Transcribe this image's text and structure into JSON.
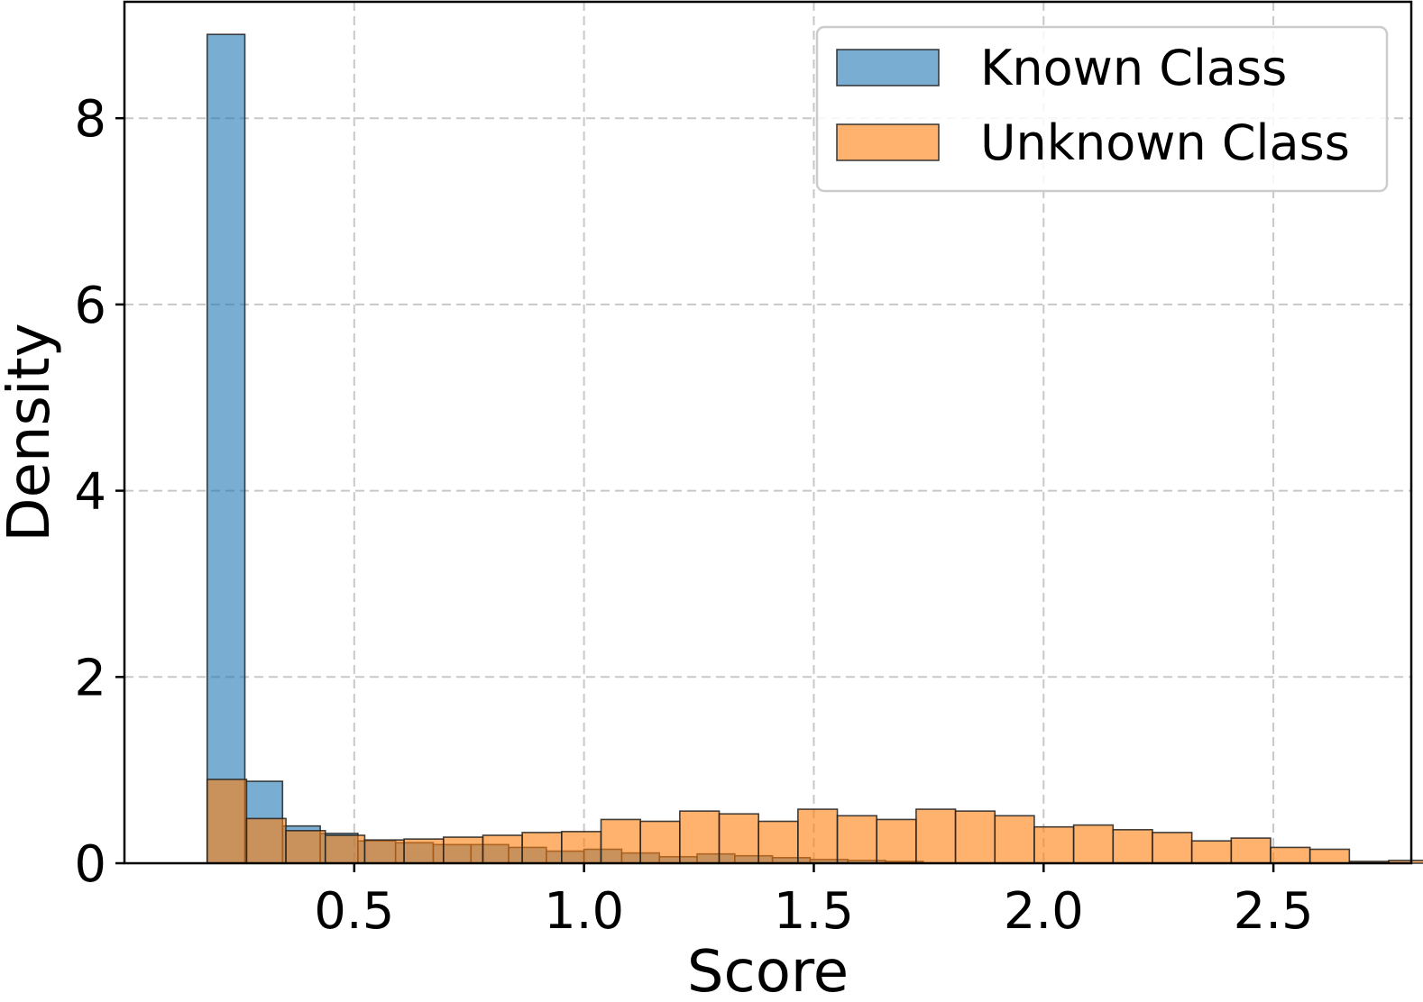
{
  "chart_data": {
    "type": "histogram",
    "xlabel": "Score",
    "ylabel": "Density",
    "xlim": [
      0.0,
      2.8
    ],
    "ylim": [
      0,
      9.25
    ],
    "xticks": [
      "0.5",
      "1.0",
      "1.5",
      "2.0",
      "2.5"
    ],
    "xtick_values": [
      0.5,
      1.0,
      1.5,
      2.0,
      2.5
    ],
    "yticks": [
      "0",
      "2",
      "4",
      "6",
      "8"
    ],
    "ytick_values": [
      0,
      2,
      4,
      6,
      8
    ],
    "grid": true,
    "legend_position": "top-right",
    "series": [
      {
        "name": "Known Class",
        "color": "#1f77b4",
        "opacity": 0.6,
        "bin_start": 0.18,
        "bin_width": 0.082,
        "values": [
          8.9,
          0.88,
          0.4,
          0.32,
          0.24,
          0.22,
          0.2,
          0.2,
          0.17,
          0.13,
          0.15,
          0.11,
          0.07,
          0.1,
          0.08,
          0.06,
          0.04,
          0.03,
          0.02
        ]
      },
      {
        "name": "Unknown Class",
        "color": "#ff7f0e",
        "opacity": 0.6,
        "bin_start": 0.18,
        "bin_width": 0.0857,
        "values": [
          0.9,
          0.48,
          0.35,
          0.3,
          0.25,
          0.26,
          0.28,
          0.3,
          0.33,
          0.34,
          0.47,
          0.45,
          0.56,
          0.53,
          0.45,
          0.58,
          0.51,
          0.47,
          0.58,
          0.56,
          0.51,
          0.39,
          0.41,
          0.36,
          0.33,
          0.24,
          0.27,
          0.17,
          0.15,
          0.02,
          0.03
        ]
      }
    ]
  }
}
